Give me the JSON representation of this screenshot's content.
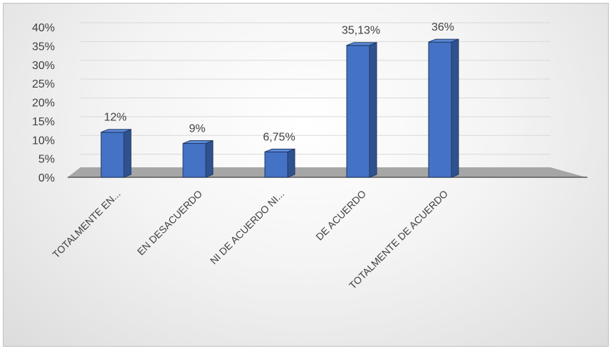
{
  "chart_data": {
    "type": "bar",
    "style": "3d-column",
    "categories": [
      "TOTALMENTE EN...",
      "EN DESACUERDO",
      "NI DE ACUERDO NI...",
      "DE ACUERDO",
      "TOTALMENTE DE ACUERDO"
    ],
    "values": [
      12,
      9,
      6.75,
      35.13,
      36
    ],
    "data_labels": [
      "12%",
      "9%",
      "6,75%",
      "35,13%",
      "36%"
    ],
    "y_ticks": [
      "0%",
      "5%",
      "10%",
      "15%",
      "20%",
      "25%",
      "30%",
      "35%",
      "40%"
    ],
    "ylim": [
      0,
      40
    ],
    "unit": "%",
    "grid": true,
    "legend": "none",
    "colors": {
      "bar_front": "#4472c4",
      "bar_side": "#2f528f",
      "bar_top": "#5b8ad8",
      "bar_edge": "#1f3864",
      "floor": "#a6a6a6",
      "gridline": "#d9d9d9",
      "text": "#404040"
    }
  }
}
